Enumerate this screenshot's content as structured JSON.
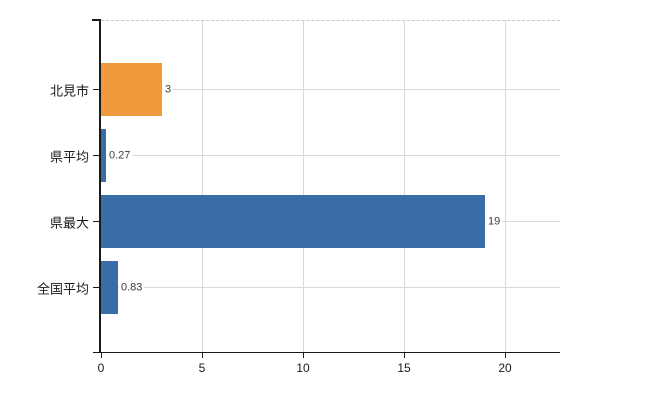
{
  "chart_data": {
    "type": "bar",
    "orientation": "horizontal",
    "title": "",
    "xlabel": "",
    "ylabel": "",
    "categories": [
      "北見市",
      "県平均",
      "県最大",
      "全国平均"
    ],
    "values": [
      3,
      0.27,
      19,
      0.83
    ],
    "value_labels": [
      "3",
      "0.27",
      "19",
      "0.83"
    ],
    "bar_colors": [
      "#ee9a3c",
      "#3a6ca8",
      "#3a6ca8",
      "#3a6ca8"
    ],
    "xlim": [
      0,
      22.7
    ],
    "x_ticks": [
      0,
      5,
      10,
      15,
      20
    ],
    "x_tick_labels": [
      "0",
      "5",
      "10",
      "15",
      "20"
    ],
    "grid": true,
    "legend": false
  },
  "colors": {
    "highlight_bar": "#ee9a3c",
    "default_bar": "#3a6ca8",
    "gridline": "#d9d9d9",
    "plot_top_border": "#c8c8c8",
    "axis": "#1a1a1a",
    "value_label_text": "#3d3d3d",
    "background": "#ffffff"
  }
}
